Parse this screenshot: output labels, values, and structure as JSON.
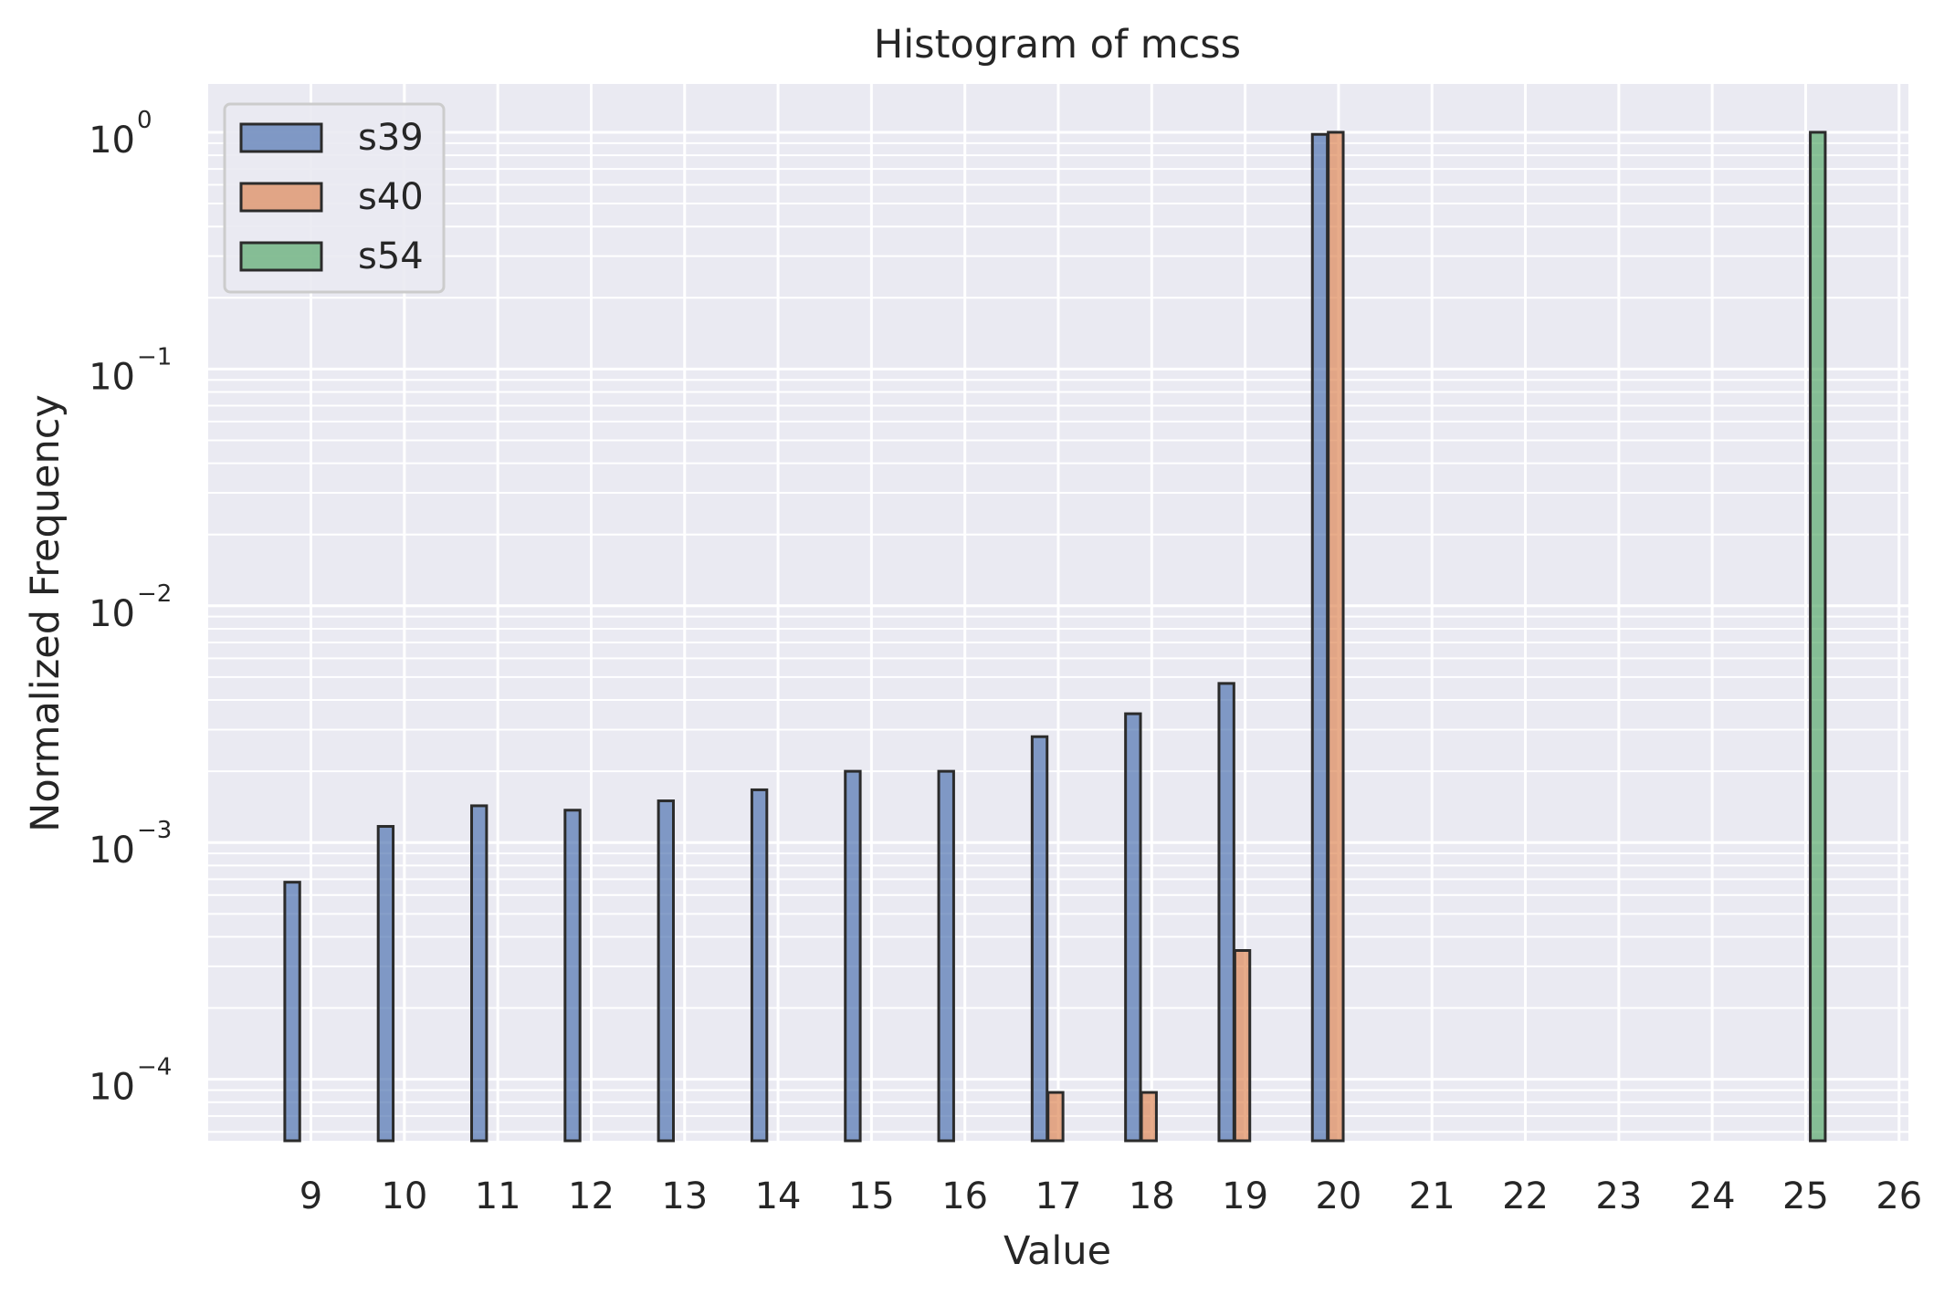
{
  "chart_data": {
    "type": "bar",
    "title": "Histogram of mcss",
    "xlabel": "Value",
    "ylabel": "Normalized Frequency",
    "yscale": "log",
    "ylim": [
      5.5e-05,
      1.6
    ],
    "xlim": [
      7.9,
      26.1
    ],
    "x_ticks": [
      9,
      10,
      11,
      12,
      13,
      14,
      15,
      16,
      17,
      18,
      19,
      20,
      21,
      22,
      23,
      24,
      25,
      26
    ],
    "y_ticks": [
      {
        "base": "10",
        "exp": "−4",
        "value": 0.0001
      },
      {
        "base": "10",
        "exp": "−3",
        "value": 0.001
      },
      {
        "base": "10",
        "exp": "−2",
        "value": 0.01
      },
      {
        "base": "10",
        "exp": "−1",
        "value": 0.1
      },
      {
        "base": "10",
        "exp": "0",
        "value": 1
      }
    ],
    "grid": true,
    "legend_position": "top-left",
    "bar_width": 0.16,
    "series": [
      {
        "name": "s39",
        "color": "#4c72b0",
        "points": [
          {
            "x": 8.8,
            "y": 0.00068
          },
          {
            "x": 9.8,
            "y": 0.00117
          },
          {
            "x": 10.8,
            "y": 0.00143
          },
          {
            "x": 11.8,
            "y": 0.00137
          },
          {
            "x": 12.8,
            "y": 0.0015
          },
          {
            "x": 13.8,
            "y": 0.00167
          },
          {
            "x": 14.8,
            "y": 0.002
          },
          {
            "x": 15.8,
            "y": 0.002
          },
          {
            "x": 16.8,
            "y": 0.0028
          },
          {
            "x": 17.8,
            "y": 0.0035
          },
          {
            "x": 18.8,
            "y": 0.0047
          },
          {
            "x": 19.8,
            "y": 0.98
          }
        ]
      },
      {
        "name": "s40",
        "color": "#dd8452",
        "points": [
          {
            "x": 16.97,
            "y": 8.8e-05
          },
          {
            "x": 17.97,
            "y": 8.8e-05
          },
          {
            "x": 18.97,
            "y": 0.00035
          },
          {
            "x": 19.97,
            "y": 1.0
          }
        ]
      },
      {
        "name": "s54",
        "color": "#55a868",
        "points": [
          {
            "x": 25.13,
            "y": 1.0
          }
        ]
      }
    ]
  }
}
